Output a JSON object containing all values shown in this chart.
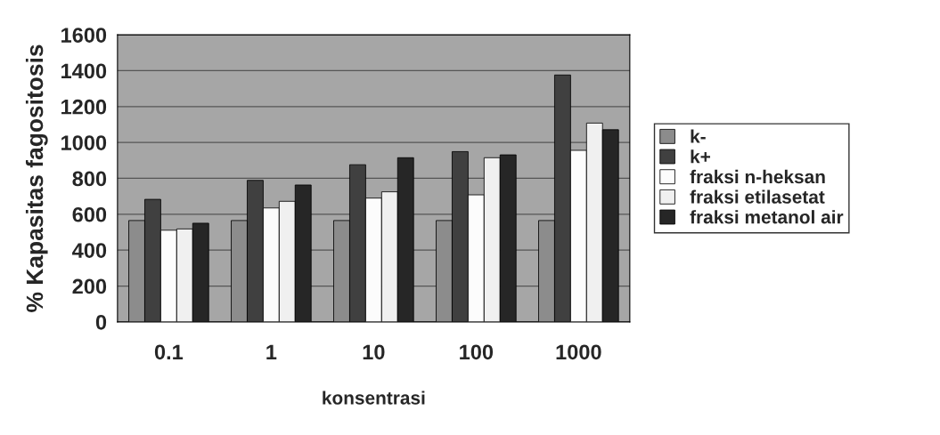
{
  "chart_data": {
    "type": "bar",
    "xlabel": "konsentrasi",
    "ylabel": "% Kapasitas fagositosis",
    "categories": [
      "0.1",
      "1",
      "10",
      "100",
      "1000"
    ],
    "series": [
      {
        "name": "k-",
        "color": "#8c8c8c",
        "values": [
          565,
          565,
          565,
          565,
          565
        ]
      },
      {
        "name": "k+",
        "color": "#404040",
        "values": [
          683,
          789,
          876,
          949,
          1376
        ]
      },
      {
        "name": "fraksi n-heksan",
        "color": "#fcfcfc",
        "values": [
          511,
          635,
          690,
          708,
          956
        ]
      },
      {
        "name": "fraksi etilasetat",
        "color": "#f0f0f0",
        "values": [
          518,
          672,
          725,
          915,
          1108
        ]
      },
      {
        "name": "fraksi metanol air",
        "color": "#262626",
        "values": [
          550,
          763,
          915,
          931,
          1071
        ]
      }
    ],
    "ylim": [
      0,
      1600
    ],
    "yticks": [
      0,
      200,
      400,
      600,
      800,
      1000,
      1200,
      1400,
      1600
    ],
    "grid": "y",
    "legend": "right"
  }
}
